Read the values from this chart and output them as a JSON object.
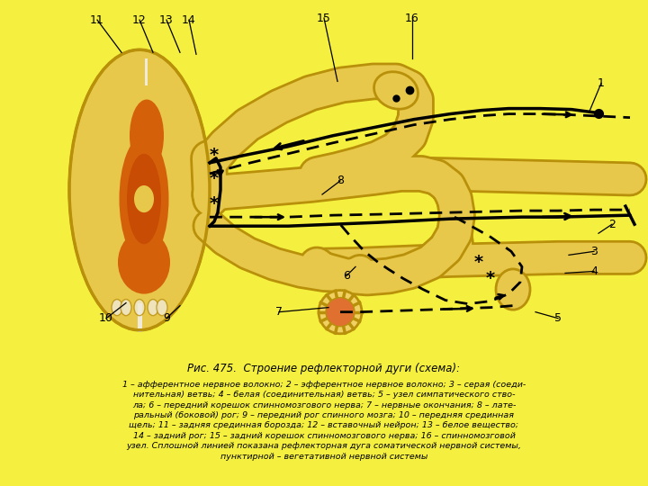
{
  "bg_color": "#f5f040",
  "panel_bg": "#f0ead8",
  "title": "Рис. 475.",
  "title_italic": "Строение рефлекторной дуги (схема):",
  "caption_lines": [
    "1 – афферентное нервное волокно; 2 – эфферентное нервное волокно; 3 – серая (соеди-",
    "нительная) ветвь; 4 – белая (соединительная) ветвь; 5 – узел симпатического ство-",
    "ла; 6 – передний корешок спинномозгового нерва; 7 – нервные окончания; 8 – лате-",
    "ральный (боковой) рог; 9 – передний рог спинного мозга; 10 – передняя срединная",
    "щель; 11 – задняя срединная борозда; 12 – вставочный нейрон; 13 – белое вещество;",
    "14 – задний рог; 15 – задний корешок спинномозгового нерва; 16 – спинномозговой",
    "узел. Сплошной линией показана рефлекторная дуга соматической нервной системы,",
    "пунктирной – вегетативной нервной системы"
  ],
  "yellow": "#e8c84a",
  "orange": "#d4600a",
  "dark_orange": "#c04000",
  "nerve_tube": "#e8c84a",
  "nerve_border": "#b8900a",
  "black": "#000000",
  "white_bg": "#f0ead8"
}
